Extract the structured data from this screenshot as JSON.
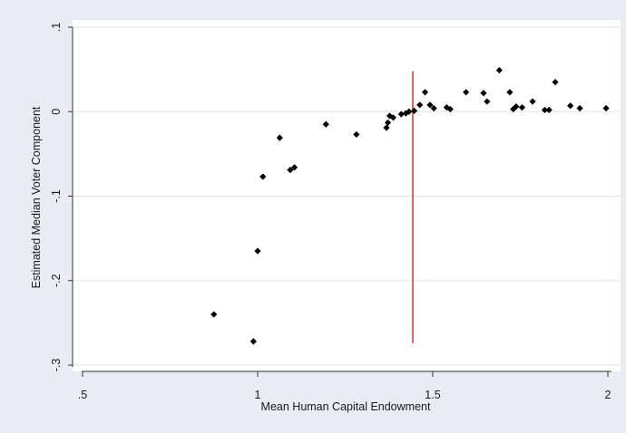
{
  "chart_data": {
    "type": "scatter",
    "xlabel": "Mean Human Capital Endowment",
    "ylabel": "Estimated Median Voter Component",
    "xlim": [
      0.5,
      2.0
    ],
    "ylim": [
      -0.3,
      0.1
    ],
    "x_ticks": [
      {
        "value": 0.5,
        "label": ".5"
      },
      {
        "value": 1.0,
        "label": "1"
      },
      {
        "value": 1.5,
        "label": "1.5"
      },
      {
        "value": 2.0,
        "label": "2"
      }
    ],
    "y_ticks": [
      {
        "value": 0.1,
        "label": ".1"
      },
      {
        "value": 0.0,
        "label": "0"
      },
      {
        "value": -0.1,
        "label": "-.1"
      },
      {
        "value": -0.2,
        "label": "-.2"
      },
      {
        "value": -0.3,
        "label": "-.3"
      }
    ],
    "grid": "horizontal",
    "marker": "diamond",
    "colors": {
      "points": "#000000",
      "reference_line": "#cc0000",
      "grid": "#e3e3e3",
      "axes": "#333333",
      "plot_bg": "#ffffff",
      "page_bg": "#e8ecf4"
    },
    "reference_line": {
      "x": 1.443,
      "y_from": -0.274,
      "y_to": 0.048
    },
    "points": [
      {
        "x": 0.875,
        "y": -0.24
      },
      {
        "x": 0.988,
        "y": -0.272
      },
      {
        "x": 1.0,
        "y": -0.165
      },
      {
        "x": 1.015,
        "y": -0.077
      },
      {
        "x": 1.063,
        "y": -0.031
      },
      {
        "x": 1.093,
        "y": -0.069
      },
      {
        "x": 1.105,
        "y": -0.066
      },
      {
        "x": 1.195,
        "y": -0.015
      },
      {
        "x": 1.282,
        "y": -0.027
      },
      {
        "x": 1.368,
        "y": -0.019
      },
      {
        "x": 1.372,
        "y": -0.013
      },
      {
        "x": 1.377,
        "y": -0.005
      },
      {
        "x": 1.387,
        "y": -0.007
      },
      {
        "x": 1.41,
        "y": -0.003
      },
      {
        "x": 1.423,
        "y": -0.002
      },
      {
        "x": 1.432,
        "y": 0.0
      },
      {
        "x": 1.447,
        "y": 0.001
      },
      {
        "x": 1.463,
        "y": 0.008
      },
      {
        "x": 1.478,
        "y": 0.023
      },
      {
        "x": 1.492,
        "y": 0.008
      },
      {
        "x": 1.503,
        "y": 0.004
      },
      {
        "x": 1.54,
        "y": 0.005
      },
      {
        "x": 1.55,
        "y": 0.003
      },
      {
        "x": 1.595,
        "y": 0.023
      },
      {
        "x": 1.645,
        "y": 0.022
      },
      {
        "x": 1.655,
        "y": 0.012
      },
      {
        "x": 1.69,
        "y": 0.049
      },
      {
        "x": 1.72,
        "y": 0.023
      },
      {
        "x": 1.73,
        "y": 0.003
      },
      {
        "x": 1.738,
        "y": 0.006
      },
      {
        "x": 1.755,
        "y": 0.005
      },
      {
        "x": 1.785,
        "y": 0.012
      },
      {
        "x": 1.82,
        "y": 0.002
      },
      {
        "x": 1.832,
        "y": 0.002
      },
      {
        "x": 1.85,
        "y": 0.035
      },
      {
        "x": 1.893,
        "y": 0.007
      },
      {
        "x": 1.92,
        "y": 0.004
      },
      {
        "x": 1.995,
        "y": 0.004
      }
    ]
  }
}
